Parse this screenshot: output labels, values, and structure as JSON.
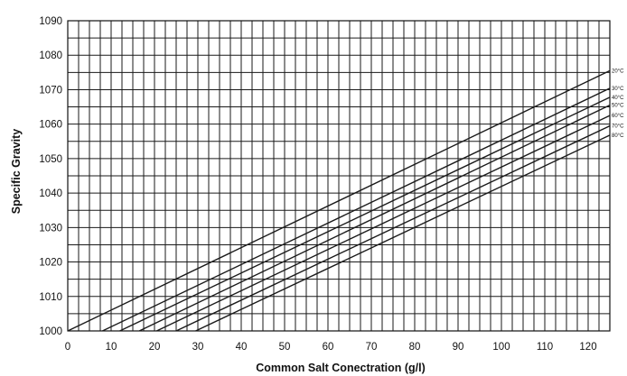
{
  "chart_data": {
    "type": "line",
    "title": "",
    "xlabel": "Common Salt Conectration (g/l)",
    "ylabel": "Specific Gravity",
    "xlim": [
      0,
      125
    ],
    "ylim": [
      1000,
      1090
    ],
    "grid": true,
    "x_minor_step": 2.5,
    "y_minor_step": 5,
    "x_ticks": [
      0,
      10,
      20,
      30,
      40,
      50,
      60,
      70,
      80,
      90,
      100,
      110,
      120
    ],
    "y_ticks": [
      1000,
      1010,
      1020,
      1030,
      1040,
      1050,
      1060,
      1070,
      1080,
      1090
    ],
    "x_tick_labels": [
      "0",
      "10",
      "20",
      "30",
      "40",
      "50",
      "60",
      "70",
      "80",
      "90",
      "100",
      "110",
      "120"
    ],
    "y_tick_labels": [
      "1000",
      "1010",
      "1020",
      "1030",
      "1040",
      "1050",
      "1060",
      "1070",
      "1080",
      "1090"
    ],
    "series": [
      {
        "name": "20°C",
        "x": [
          0,
          125
        ],
        "y": [
          1000,
          1075.5
        ]
      },
      {
        "name": "30°C",
        "x": [
          8,
          125
        ],
        "y": [
          1000,
          1070.4
        ]
      },
      {
        "name": "40°C",
        "x": [
          12,
          125
        ],
        "y": [
          1000,
          1067.8
        ]
      },
      {
        "name": "50°C",
        "x": [
          16.5,
          125
        ],
        "y": [
          1000,
          1065.5
        ]
      },
      {
        "name": "60°C",
        "x": [
          20.5,
          125
        ],
        "y": [
          1000,
          1062.5
        ]
      },
      {
        "name": "70°C",
        "x": [
          25,
          125
        ],
        "y": [
          1000,
          1059.5
        ]
      },
      {
        "name": "80°C",
        "x": [
          29.5,
          125
        ],
        "y": [
          1000,
          1056.8
        ]
      }
    ],
    "line_color": "#1a1a1a"
  }
}
